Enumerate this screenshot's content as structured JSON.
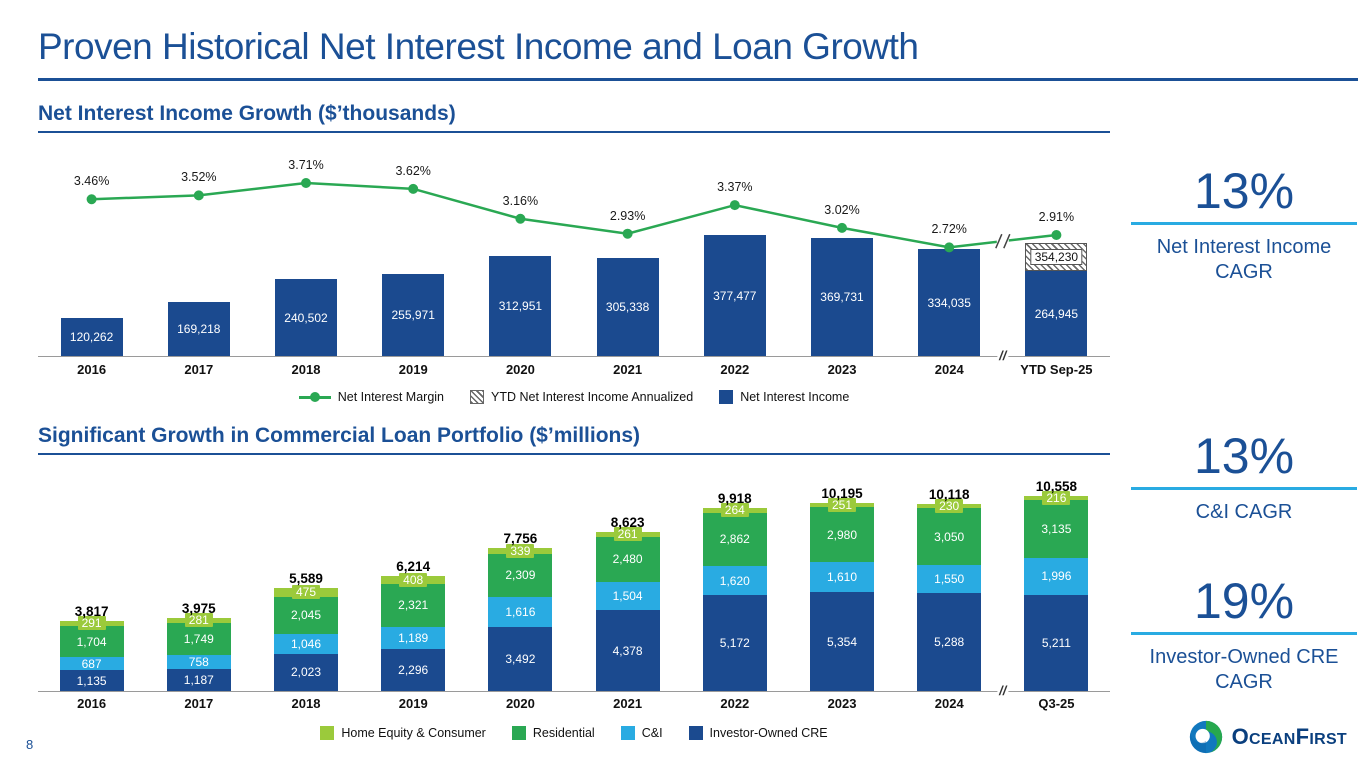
{
  "page": {
    "title": "Proven Historical Net Interest Income and Loan Growth",
    "page_number": "8",
    "logo_part1": "Ocean",
    "logo_part2": "First"
  },
  "colors": {
    "navy": "#1b4a8f",
    "green": "#2aa853",
    "lightblue": "#29abe2",
    "lightgreen": "#9bca3b"
  },
  "chart_data": [
    {
      "type": "bar+line",
      "title": "Net Interest Income Growth ($’thousands)",
      "categories": [
        "2016",
        "2017",
        "2018",
        "2019",
        "2020",
        "2021",
        "2022",
        "2023",
        "2024",
        "YTD Sep-25"
      ],
      "bar_series": {
        "name": "Net Interest Income",
        "values": [
          120262,
          169218,
          240502,
          255971,
          312951,
          305338,
          377477,
          369731,
          334035,
          264945
        ],
        "labels": [
          "120,262",
          "169,218",
          "240,502",
          "255,971",
          "312,951",
          "305,338",
          "377,477",
          "369,731",
          "334,035",
          "264,945"
        ]
      },
      "annualized_overlay": {
        "name": "YTD Net Interest Income Annualized",
        "category": "YTD Sep-25",
        "value": 354230,
        "label": "354,230"
      },
      "line_series": {
        "name": "Net Interest Margin",
        "values": [
          3.46,
          3.52,
          3.71,
          3.62,
          3.16,
          2.93,
          3.37,
          3.02,
          2.72,
          2.91
        ],
        "labels": [
          "3.46%",
          "3.52%",
          "3.71%",
          "3.62%",
          "3.16%",
          "2.93%",
          "3.37%",
          "3.02%",
          "2.72%",
          "2.91%"
        ]
      },
      "axis_break_after": "2024",
      "legend": [
        {
          "label": "Net Interest Margin",
          "swatch": "line"
        },
        {
          "label": "YTD Net Interest Income Annualized",
          "swatch": "hatch"
        },
        {
          "label": "Net Interest Income",
          "swatch": "navy"
        }
      ]
    },
    {
      "type": "stacked-bar",
      "title": "Significant Growth in Commercial Loan Portfolio ($’millions)",
      "categories": [
        "2016",
        "2017",
        "2018",
        "2019",
        "2020",
        "2021",
        "2022",
        "2023",
        "2024",
        "Q3-25"
      ],
      "totals": [
        "3,817",
        "3,975",
        "5,589",
        "6,214",
        "7,756",
        "8,623",
        "9,918",
        "10,195",
        "10,118",
        "10,558"
      ],
      "totals_values": [
        3817,
        3975,
        5589,
        6214,
        7756,
        8623,
        9918,
        10195,
        10118,
        10558
      ],
      "series": [
        {
          "name": "Investor-Owned CRE",
          "color": "navy",
          "values": [
            1135,
            1187,
            2023,
            2296,
            3492,
            4378,
            5172,
            5354,
            5288,
            5211
          ],
          "labels": [
            "1,135",
            "1,187",
            "2,023",
            "2,296",
            "3,492",
            "4,378",
            "5,172",
            "5,354",
            "5,288",
            "5,211"
          ]
        },
        {
          "name": "C&I",
          "color": "lightblue",
          "values": [
            687,
            758,
            1046,
            1189,
            1616,
            1504,
            1620,
            1610,
            1550,
            1996
          ],
          "labels": [
            "687",
            "758",
            "1,046",
            "1,189",
            "1,616",
            "1,504",
            "1,620",
            "1,610",
            "1,550",
            "1,996"
          ]
        },
        {
          "name": "Residential",
          "color": "green",
          "values": [
            1704,
            1749,
            2045,
            2321,
            2309,
            2480,
            2862,
            2980,
            3050,
            3135
          ],
          "labels": [
            "1,704",
            "1,749",
            "2,045",
            "2,321",
            "2,309",
            "2,480",
            "2,862",
            "2,980",
            "3,050",
            "3,135"
          ]
        },
        {
          "name": "Home Equity & Consumer",
          "color": "lightgreen",
          "values": [
            291,
            281,
            475,
            408,
            339,
            261,
            264,
            251,
            230,
            216
          ],
          "labels": [
            "291",
            "281",
            "475",
            "408",
            "339",
            "261",
            "264",
            "251",
            "230",
            "216"
          ]
        }
      ],
      "axis_break_after": "2024",
      "legend": [
        {
          "label": "Home Equity & Consumer",
          "swatch": "lightgreen"
        },
        {
          "label": "Residential",
          "swatch": "green"
        },
        {
          "label": "C&I",
          "swatch": "lightblue"
        },
        {
          "label": "Investor-Owned CRE",
          "swatch": "navy"
        }
      ]
    }
  ],
  "stats": [
    {
      "value": "13%",
      "label": "Net Interest Income CAGR"
    },
    {
      "value": "13%",
      "label": "C&I CAGR"
    },
    {
      "value": "19%",
      "label": "Investor-Owned CRE CAGR"
    }
  ]
}
